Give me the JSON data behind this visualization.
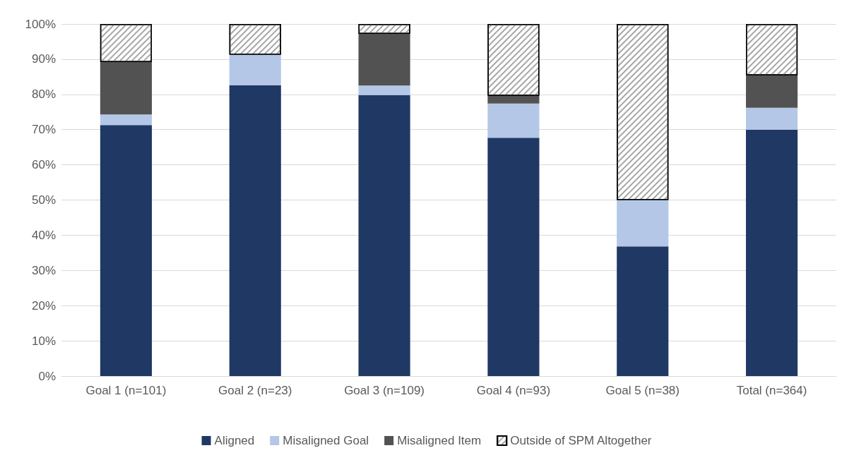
{
  "chart_data": {
    "type": "bar",
    "stacked": true,
    "categories": [
      "Goal 1 (n=101)",
      "Goal 2 (n=23)",
      "Goal 3 (n=109)",
      "Goal 4 (n=93)",
      "Goal 5 (n=38)",
      "Total (n=364)"
    ],
    "series": [
      {
        "name": "Aligned",
        "color": "#203864",
        "values": [
          71.3,
          82.6,
          79.8,
          67.7,
          36.8,
          70.0
        ]
      },
      {
        "name": "Misaligned Goal",
        "color": "#b4c7e7",
        "values": [
          3.0,
          8.7,
          2.7,
          9.7,
          13.2,
          6.2
        ]
      },
      {
        "name": "Misaligned Item",
        "color": "#525252",
        "values": [
          14.9,
          0,
          14.7,
          2.2,
          0,
          9.2
        ]
      },
      {
        "name": "Outside of SPM Altogether",
        "color": "#ffffff",
        "values": [
          10.8,
          8.7,
          2.8,
          20.4,
          50.0,
          14.6
        ]
      }
    ],
    "ylim": [
      0,
      100
    ],
    "yticks": [
      {
        "value": 0,
        "label": "0%"
      },
      {
        "value": 10,
        "label": "10%"
      },
      {
        "value": 20,
        "label": "20%"
      },
      {
        "value": 30,
        "label": "30%"
      },
      {
        "value": 40,
        "label": "40%"
      },
      {
        "value": 50,
        "label": "50%"
      },
      {
        "value": 60,
        "label": "60%"
      },
      {
        "value": 70,
        "label": "70%"
      },
      {
        "value": 80,
        "label": "80%"
      },
      {
        "value": 90,
        "label": "90%"
      },
      {
        "value": 100,
        "label": "100%"
      }
    ],
    "grid": "y",
    "legend": "bottom"
  }
}
